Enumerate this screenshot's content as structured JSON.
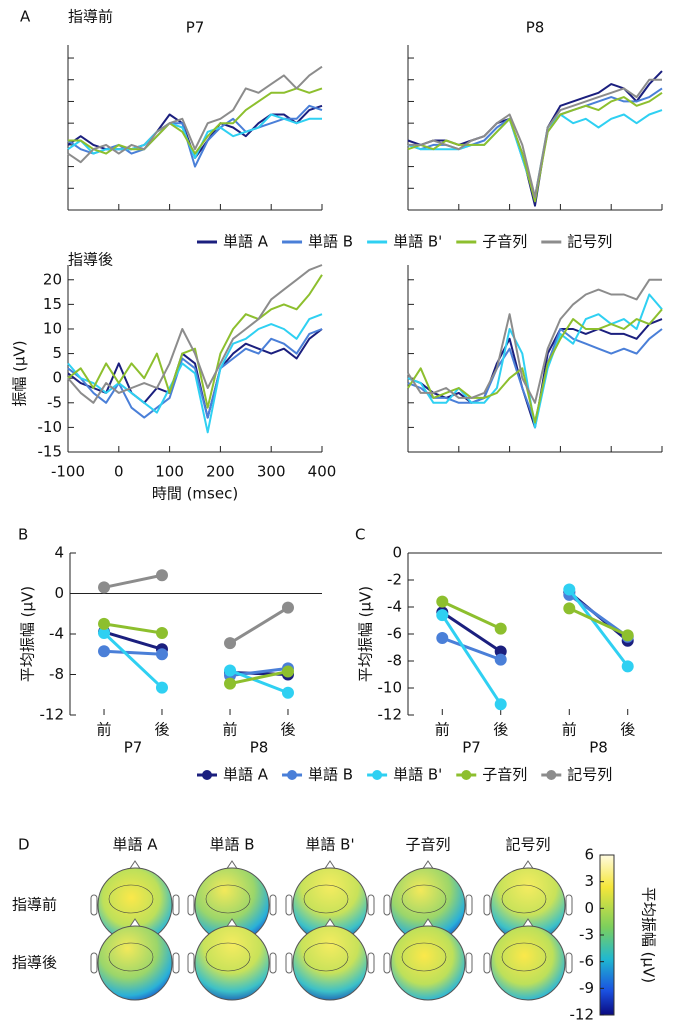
{
  "chart_data": [
    {
      "type": "line",
      "panel": "A",
      "subtitle": "指導前",
      "title": "P7",
      "tick_labels": false,
      "legend": true,
      "x": [
        -100,
        -75,
        -50,
        -25,
        0,
        25,
        50,
        75,
        100,
        125,
        150,
        175,
        200,
        225,
        250,
        275,
        300,
        325,
        350,
        375,
        400
      ],
      "xlim": [
        -100,
        400
      ],
      "xticks": [
        -100,
        0,
        100,
        200,
        300,
        400
      ],
      "ylim": [
        -15,
        23
      ],
      "yticks": [
        -15,
        -10,
        -5,
        0,
        5,
        10,
        15,
        20
      ],
      "series": [
        {
          "name": "単語 A",
          "color": "#1b1f7e",
          "values": [
            0,
            2,
            0,
            -1,
            -1,
            -1,
            0,
            3,
            7,
            5,
            -3,
            1,
            5,
            4,
            2,
            5,
            7,
            7,
            5,
            8,
            9
          ]
        },
        {
          "name": "単語 B",
          "color": "#4a7fd8",
          "values": [
            1,
            -1,
            -2,
            -1,
            0,
            -2,
            -1,
            2,
            5,
            5,
            -5,
            1,
            4,
            6,
            3,
            4,
            5,
            6,
            6,
            9,
            8
          ]
        },
        {
          "name": "単語 B'",
          "color": "#2fd0f2",
          "values": [
            -1,
            1,
            -2,
            -1,
            -1,
            -1,
            0,
            3,
            5,
            4,
            -3,
            3,
            4,
            2,
            3,
            4,
            7,
            6,
            5,
            6,
            6
          ]
        },
        {
          "name": "子音列",
          "color": "#8dbf2e",
          "values": [
            1,
            1,
            -1,
            -2,
            0,
            -1,
            -1,
            2,
            5,
            3,
            -2,
            2,
            5,
            5,
            8,
            10,
            12,
            12,
            13,
            12,
            13
          ]
        },
        {
          "name": "記号列",
          "color": "#8c8c8c",
          "values": [
            -2,
            -4,
            -1,
            0,
            -2,
            0,
            -1,
            3,
            5,
            6,
            -1,
            5,
            6,
            8,
            13,
            12,
            14,
            16,
            13,
            16,
            18
          ]
        }
      ]
    },
    {
      "type": "line",
      "title": "P8",
      "tick_labels": false,
      "x": [
        -100,
        -75,
        -50,
        -25,
        0,
        25,
        50,
        75,
        100,
        125,
        150,
        175,
        200,
        225,
        250,
        275,
        300,
        325,
        350,
        375,
        400
      ],
      "xlim": [
        -100,
        400
      ],
      "xticks": [
        -100,
        0,
        100,
        200,
        300,
        400
      ],
      "ylim": [
        -15,
        23
      ],
      "yticks": [
        -15,
        -10,
        -5,
        0,
        5,
        10,
        15,
        20
      ],
      "series": [
        {
          "name": "単語 A",
          "color": "#1b1f7e",
          "values": [
            1,
            0,
            1,
            1,
            0,
            1,
            2,
            5,
            6,
            -2,
            -14,
            4,
            9,
            10,
            11,
            12,
            14,
            13,
            10,
            14,
            17
          ]
        },
        {
          "name": "単語 B",
          "color": "#4a7fd8",
          "values": [
            0,
            -1,
            0,
            0,
            -1,
            0,
            1,
            4,
            6,
            -3,
            -12,
            3,
            7,
            8,
            9,
            10,
            11,
            10,
            10,
            11,
            13
          ]
        },
        {
          "name": "単語 B'",
          "color": "#2fd0f2",
          "values": [
            0,
            -1,
            -1,
            -1,
            -1,
            0,
            0,
            3,
            6,
            -3,
            -12,
            4,
            7,
            5,
            6,
            4,
            6,
            7,
            5,
            7,
            8
          ]
        },
        {
          "name": "子音列",
          "color": "#8dbf2e",
          "values": [
            -1,
            0,
            -1,
            1,
            0,
            0,
            0,
            3,
            6,
            -2,
            -13,
            3,
            7,
            8,
            9,
            8,
            10,
            11,
            9,
            10,
            12
          ]
        },
        {
          "name": "記号列",
          "color": "#8c8c8c",
          "values": [
            0,
            0,
            1,
            0,
            -1,
            1,
            2,
            5,
            7,
            0,
            -12,
            4,
            8,
            9,
            10,
            11,
            12,
            13,
            11,
            15,
            15
          ]
        }
      ]
    },
    {
      "type": "line",
      "subtitle": "指導後",
      "tick_labels": true,
      "xlabel": "時間 (msec)",
      "ylabel": "振幅 (μV)",
      "x": [
        -100,
        -75,
        -50,
        -25,
        0,
        25,
        50,
        75,
        100,
        125,
        150,
        175,
        200,
        225,
        250,
        275,
        300,
        325,
        350,
        375,
        400
      ],
      "xlim": [
        -100,
        400
      ],
      "xticks": [
        -100,
        0,
        100,
        200,
        300,
        400
      ],
      "ylim": [
        -15,
        23
      ],
      "yticks": [
        -15,
        -10,
        -5,
        0,
        5,
        10,
        15,
        20
      ],
      "series": [
        {
          "name": "単語 A",
          "color": "#1b1f7e",
          "values": [
            1,
            -1,
            -2,
            -3,
            3,
            -3,
            -5,
            -2,
            -3,
            5,
            3,
            -8,
            2,
            5,
            7,
            6,
            5,
            6,
            4,
            8,
            10
          ]
        },
        {
          "name": "単語 B",
          "color": "#4a7fd8",
          "values": [
            2,
            0,
            -3,
            -5,
            -1,
            -6,
            -8,
            -6,
            -4,
            4,
            2,
            -8,
            2,
            4,
            6,
            5,
            8,
            7,
            5,
            9,
            10
          ]
        },
        {
          "name": "単語 B'",
          "color": "#2fd0f2",
          "values": [
            3,
            0,
            -1,
            -3,
            -1,
            -3,
            -5,
            -7,
            -2,
            3,
            1,
            -11,
            2,
            7,
            8,
            10,
            11,
            10,
            8,
            12,
            13
          ]
        },
        {
          "name": "子音列",
          "color": "#8dbf2e",
          "values": [
            0,
            2,
            -2,
            3,
            -1,
            3,
            0,
            5,
            -3,
            5,
            6,
            -6,
            5,
            10,
            13,
            12,
            14,
            15,
            14,
            17,
            21
          ]
        },
        {
          "name": "記号列",
          "color": "#8c8c8c",
          "values": [
            0,
            -3,
            -5,
            -1,
            -3,
            -2,
            -1,
            -2,
            3,
            10,
            5,
            -2,
            3,
            8,
            10,
            12,
            16,
            18,
            20,
            22,
            23
          ]
        }
      ]
    },
    {
      "type": "line",
      "tick_labels": false,
      "x": [
        -100,
        -75,
        -50,
        -25,
        0,
        25,
        50,
        75,
        100,
        125,
        150,
        175,
        200,
        225,
        250,
        275,
        300,
        325,
        350,
        375,
        400
      ],
      "xlim": [
        -100,
        400
      ],
      "xticks": [
        -100,
        0,
        100,
        200,
        300,
        400
      ],
      "ylim": [
        -15,
        23
      ],
      "yticks": [
        -15,
        -10,
        -5,
        0,
        5,
        10,
        15,
        20
      ],
      "series": [
        {
          "name": "単語 A",
          "color": "#1b1f7e",
          "values": [
            0,
            -1,
            -3,
            -4,
            -3,
            -5,
            -4,
            3,
            8,
            -2,
            -10,
            5,
            10,
            10,
            9,
            10,
            9,
            9,
            8,
            11,
            12
          ]
        },
        {
          "name": "単語 B",
          "color": "#4a7fd8",
          "values": [
            -1,
            -2,
            -4,
            -4,
            -5,
            -5,
            -4,
            2,
            6,
            -2,
            -9,
            3,
            10,
            8,
            7,
            6,
            5,
            6,
            5,
            8,
            10
          ]
        },
        {
          "name": "単語 B'",
          "color": "#2fd0f2",
          "values": [
            0,
            -1,
            -5,
            -5,
            -2,
            -5,
            -5,
            -2,
            10,
            5,
            -10,
            2,
            9,
            7,
            12,
            13,
            11,
            12,
            10,
            17,
            14
          ]
        },
        {
          "name": "子音列",
          "color": "#8dbf2e",
          "values": [
            -2,
            2,
            -4,
            -3,
            -2,
            -4,
            -4,
            -3,
            0,
            2,
            -9,
            3,
            8,
            12,
            10,
            10,
            11,
            10,
            12,
            11,
            14
          ]
        },
        {
          "name": "記号列",
          "color": "#8c8c8c",
          "values": [
            1,
            -3,
            -3,
            -2,
            -4,
            -4,
            -3,
            2,
            13,
            0,
            -5,
            6,
            12,
            15,
            17,
            18,
            17,
            17,
            16,
            20,
            20
          ]
        }
      ]
    },
    {
      "type": "dot",
      "panel": "B",
      "ylabel": "平均振幅 (μV)",
      "legend": true,
      "categories": [
        "前",
        "後",
        "前",
        "後"
      ],
      "groups": [
        "P7",
        "P8"
      ],
      "ylim": [
        -12,
        4
      ],
      "yticks": [
        -12,
        -8,
        -4,
        0,
        4
      ],
      "series": [
        {
          "name": "単語 A",
          "color": "#1b1f7e",
          "values": [
            -3.8,
            -5.5,
            -7.8,
            -8.0
          ]
        },
        {
          "name": "単語 B",
          "color": "#4a7fd8",
          "values": [
            -5.7,
            -6.0,
            -8.1,
            -7.4
          ]
        },
        {
          "name": "単語 B'",
          "color": "#2fd0f2",
          "values": [
            -3.9,
            -9.3,
            -7.6,
            -9.8
          ]
        },
        {
          "name": "子音列",
          "color": "#8dbf2e",
          "values": [
            -3.0,
            -3.9,
            -8.9,
            -7.7
          ]
        },
        {
          "name": "記号列",
          "color": "#8c8c8c",
          "values": [
            0.6,
            1.8,
            -4.9,
            -1.4
          ]
        }
      ]
    },
    {
      "type": "dot",
      "panel": "C",
      "ylabel": "平均振幅 (μV)",
      "categories": [
        "前",
        "後",
        "前",
        "後"
      ],
      "groups": [
        "P7",
        "P8"
      ],
      "ylim": [
        -12,
        0
      ],
      "yticks": [
        -12,
        -10,
        -8,
        -6,
        -4,
        -2,
        0
      ],
      "series": [
        {
          "name": "単語 A",
          "color": "#1b1f7e",
          "values": [
            -4.4,
            -7.3,
            -2.9,
            -6.5
          ]
        },
        {
          "name": "単語 B",
          "color": "#4a7fd8",
          "values": [
            -6.3,
            -7.9,
            -3.1,
            -6.2
          ]
        },
        {
          "name": "単語 B'",
          "color": "#2fd0f2",
          "values": [
            -4.6,
            -11.2,
            -2.7,
            -8.4
          ]
        },
        {
          "name": "子音列",
          "color": "#8dbf2e",
          "values": [
            -3.6,
            -5.6,
            -4.1,
            -6.1
          ]
        }
      ]
    },
    {
      "type": "topomap",
      "panel": "D",
      "columns": [
        "単語 A",
        "単語 B",
        "単語 B'",
        "子音列",
        "記号列"
      ],
      "rows": [
        "指導前",
        "指導後"
      ],
      "clim": [
        -12,
        6
      ],
      "cticks": [
        -12,
        -9,
        -6,
        -3,
        0,
        3,
        6
      ],
      "colorbar_label": "平均振幅 (μV)"
    }
  ]
}
